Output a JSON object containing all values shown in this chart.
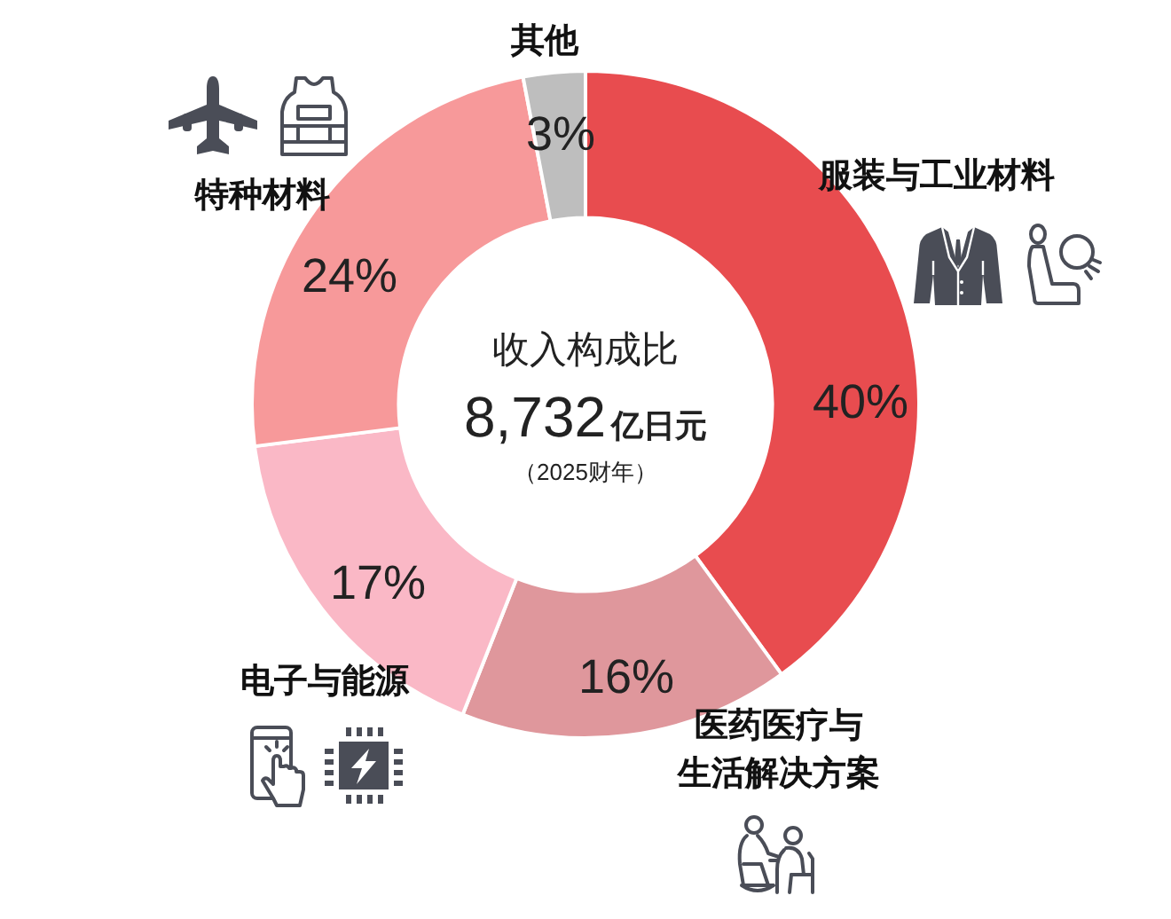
{
  "chart_data": {
    "type": "donut",
    "title": "收入构成比",
    "subtitle": "8,732亿日元",
    "annotations": [
      "（2025财年）"
    ],
    "categories": [
      "服装与工业材料",
      "医药医疗与生活解决方案",
      "电子与能源",
      "特种材料",
      "其他"
    ],
    "values": [
      40,
      16,
      17,
      24,
      3
    ],
    "colors": [
      "#e84c4f",
      "#df979c",
      "#fab8c6",
      "#f7999a",
      "#bebebe"
    ],
    "value_labels": [
      "40%",
      "16%",
      "17%",
      "24%",
      "3%"
    ]
  }
}
